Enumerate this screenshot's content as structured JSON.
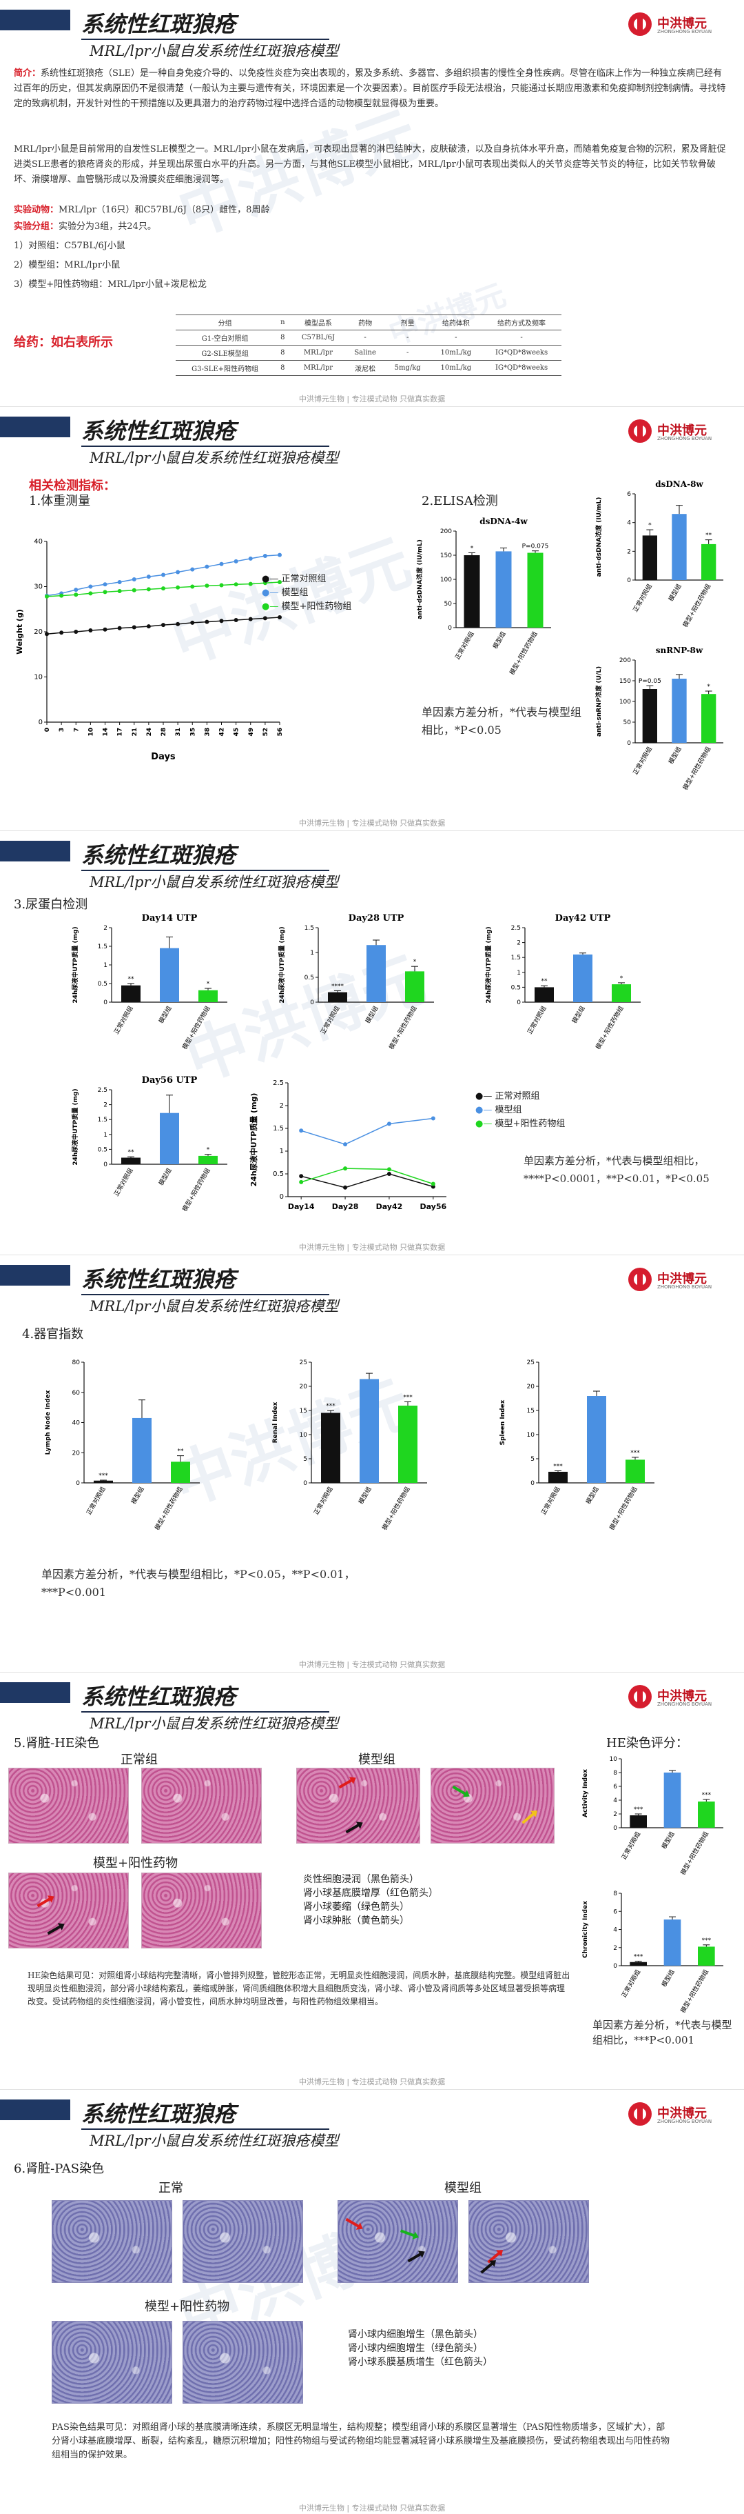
{
  "header": {
    "title": "系统性红斑狼疮",
    "subtitle": "MRL/lpr小鼠自发系统性红斑狼疮模型",
    "logo_name": "中洪博元",
    "logo_en": "ZHONGHONG BOYUAN"
  },
  "footer": "中洪博元生物 | 专注模式动物 只做真实数据",
  "watermark": "中洪博元",
  "panel1": {
    "intro_label": "简介：",
    "intro": "系统性红斑狼疮（SLE）是一种自身免疫介导的、以免疫性炎症为突出表现的，累及多系统、多器官、多组织损害的慢性全身性疾病。尽管在临床上作为一种独立疾病已经有过百年的历史，但其发病原因仍不是很清楚（一般认为主要与遗传有关，环境因素是一个次要因素）。目前医疗手段无法根治，只能通过长期应用激素和免疫抑制剂控制病情。寻找特定的致病机制，开发针对性的干预措施以及更具潜力的治疗药物过程中选择合适的动物模型就显得极为重要。",
    "model_desc": "MRL/lpr小鼠是目前常用的自发性SLE模型之一。MRL/lpr小鼠在发病后，可表现出显著的淋巴结肿大，皮肤破溃，以及自身抗体水平升高，而随着免疫复合物的沉积，累及肾脏促进类SLE患者的狼疮肾炎的形成，并呈现出尿蛋白水平的升高。另一方面，与其他SLE模型小鼠相比，MRL/lpr小鼠可表现出类似人的关节炎症等关节炎的特征，比如关节软骨破坏、滑膜增厚、血管翳形成以及滑膜炎症细胞浸润等。",
    "animal_label": "实验动物：",
    "animal": "MRL/lpr（16只）和C57BL/6J（8只）雌性，8周龄",
    "group_label": "实验分组：",
    "group": "实验分为3组，共24只。",
    "groups": [
      "1）对照组：C57BL/6J小鼠",
      "2）模型组：MRL/lpr小鼠",
      "3）模型+阳性药物组：MRL/lpr小鼠+泼尼松龙"
    ],
    "dose_label": "给药：如右表所示",
    "table_headers": [
      "分组",
      "n",
      "模型品系",
      "药物",
      "剂量",
      "给药体积",
      "给药方式及频率"
    ],
    "table_rows": [
      [
        "G1-空白对照组",
        "8",
        "C57BL/6J",
        "-",
        "-",
        "-",
        "-"
      ],
      [
        "G2-SLE模型组",
        "8",
        "MRL/lpr",
        "Saline",
        "-",
        "10mL/kg",
        "IG*QD*8weeks"
      ],
      [
        "G3-SLE+阳性药物组",
        "8",
        "MRL/lpr",
        "泼尼松",
        "5mg/kg",
        "10mL/kg",
        "IG*QD*8weeks"
      ]
    ]
  },
  "panel2": {
    "section": "相关检测指标：",
    "sub1": "1.体重测量",
    "sub2": "2.ELISA检测",
    "legend": [
      "正常对照组",
      "模型组",
      "模型+阳性药物组"
    ],
    "colors": {
      "normal": "#111111",
      "model": "#4a90e2",
      "drug": "#1fd61f"
    },
    "note": "单因素方差分析，*代表与模型组相比，*P<0.05"
  },
  "panel3": {
    "sub": "3.尿蛋白检测",
    "note": "单因素方差分析，*代表与模型组相比，****P<0.0001，**P<0.01，*P<0.05"
  },
  "panel4": {
    "sub": "4.器官指数",
    "note": "单因素方差分析，*代表与模型组相比，*P<0.05，**P<0.01，***P<0.001"
  },
  "panel5": {
    "sub": "5.肾脏-HE染色",
    "label_normal": "正常组",
    "label_model": "模型组",
    "label_drug": "模型+阳性药物",
    "legend": [
      "炎性细胞浸润（黑色箭头）",
      "肾小球基底膜增厚（红色箭头）",
      "肾小球萎缩（绿色箭头）",
      "肾小球肿胀（黄色箭头）"
    ],
    "score_title": "HE染色评分：",
    "note": "单因素方差分析，*代表与模型组相比，***P<0.001",
    "desc": "HE染色结果可见：对照组肾小球结构完整清晰，肾小管排列规整，管腔形态正常，无明显炎性细胞浸润，间质水肿，基底膜结构完整。模型组肾脏出现明显炎性细胞浸润，部分肾小球结构紊乱，萎缩或肿胀，肾间质细胞体积增大且细胞质变浅，肾小球、肾小管及肾间质等多处区域显著受损等病理改变。受试药物组的炎性细胞浸润，肾小管变性，间质水肿均明显改善，与阳性药物组效果相当。"
  },
  "panel6": {
    "sub": "6.肾脏-PAS染色",
    "label_normal": "正常",
    "label_model": "模型组",
    "label_drug": "模型+阳性药物",
    "legend": [
      "肾小球内细胞增生（黑色箭头）",
      "肾小球内细胞增生（绿色箭头）",
      "肾小球系膜基质增生（红色箭头）"
    ],
    "desc": "PAS染色结果可见：对照组肾小球的基底膜清晰连续，系膜区无明显增生，结构规整；模型组肾小球的系膜区显著增生（PAS阳性物质增多，区域扩大），部分肾小球基底膜增厚、断裂，结构紊乱，糖原沉积增加；阳性药物组与受试药物组均能显著减轻肾小球系膜增生及基底膜损伤，受试药物组表现出与阳性药物组相当的保护效果。"
  },
  "chart_data": [
    {
      "type": "line",
      "title": "",
      "xlabel": "Days",
      "ylabel": "Weight (g)",
      "x": [
        0,
        3,
        7,
        10,
        14,
        17,
        21,
        24,
        28,
        31,
        35,
        38,
        42,
        45,
        49,
        52,
        56
      ],
      "ylim": [
        0,
        40
      ],
      "yticks": [
        0,
        10,
        20,
        30,
        40
      ],
      "series": [
        {
          "name": "正常对照组",
          "values": [
            19.5,
            19.8,
            20.0,
            20.3,
            20.5,
            20.8,
            21.0,
            21.2,
            21.5,
            21.7,
            22.0,
            22.2,
            22.4,
            22.6,
            22.8,
            23.0,
            23.2
          ]
        },
        {
          "name": "模型组",
          "values": [
            28.0,
            28.5,
            29.3,
            30.0,
            30.5,
            31.0,
            31.6,
            32.2,
            32.6,
            33.2,
            33.8,
            34.4,
            35.0,
            35.6,
            36.2,
            36.8,
            37.0
          ]
        },
        {
          "name": "模型+阳性药物组",
          "values": [
            27.8,
            28.0,
            28.2,
            28.5,
            28.8,
            29.0,
            29.2,
            29.4,
            29.6,
            29.8,
            30.0,
            30.2,
            30.3,
            30.5,
            30.6,
            30.8,
            31.0
          ]
        }
      ]
    },
    {
      "type": "bar",
      "title": "dsDNA-4w",
      "ylabel": "anti-dsDNA浓度 (IU/mL)",
      "ylim": [
        0,
        200
      ],
      "yticks": [
        0,
        50,
        100,
        150,
        200
      ],
      "categories": [
        "正常对照组",
        "模型组",
        "模型+阳性药物组"
      ],
      "values": [
        150,
        158,
        155
      ],
      "err": [
        5,
        7,
        4
      ],
      "sig": [
        "*",
        "",
        "P=0.075"
      ]
    },
    {
      "type": "bar",
      "title": "dsDNA-8w",
      "ylabel": "anti-dsDNA浓度 (IU/mL)",
      "ylim": [
        0,
        6
      ],
      "yticks": [
        0,
        2,
        4,
        6
      ],
      "categories": [
        "正常对照组",
        "模型组",
        "模型+阳性药物组"
      ],
      "values": [
        3.1,
        4.6,
        2.5
      ],
      "err": [
        0.4,
        0.6,
        0.3
      ],
      "sig": [
        "*",
        "",
        "**"
      ]
    },
    {
      "type": "bar",
      "title": "snRNP-8w",
      "ylabel": "anti-snRNP浓度 (U/L)",
      "ylim": [
        0,
        200
      ],
      "yticks": [
        0,
        50,
        100,
        150,
        200
      ],
      "categories": [
        "正常对照组",
        "模型组",
        "模型+阳性药物组"
      ],
      "values": [
        130,
        155,
        118
      ],
      "err": [
        8,
        10,
        7
      ],
      "sig": [
        "P=0.05",
        "",
        "*"
      ]
    },
    {
      "type": "bar",
      "title": "Day14 UTP",
      "ylabel": "24h尿液中UTP质量 (mg)",
      "ylim": [
        0,
        2.0
      ],
      "yticks": [
        0,
        0.5,
        1.0,
        1.5,
        2.0
      ],
      "categories": [
        "正常对照组",
        "模型组",
        "模型+阳性药物组"
      ],
      "values": [
        0.45,
        1.45,
        0.32
      ],
      "err": [
        0.05,
        0.3,
        0.05
      ],
      "sig": [
        "**",
        "",
        "*"
      ]
    },
    {
      "type": "bar",
      "title": "Day28 UTP",
      "ylabel": "24h尿液中UTP质量 (mg)",
      "ylim": [
        0,
        1.5
      ],
      "yticks": [
        0,
        0.5,
        1.0,
        1.5
      ],
      "categories": [
        "正常对照组",
        "模型组",
        "模型+阳性药物组"
      ],
      "values": [
        0.2,
        1.15,
        0.62
      ],
      "err": [
        0.03,
        0.1,
        0.1
      ],
      "sig": [
        "****",
        "",
        "*"
      ]
    },
    {
      "type": "bar",
      "title": "Day42 UTP",
      "ylabel": "24h尿液中UTP质量 (mg)",
      "ylim": [
        0,
        2.5
      ],
      "yticks": [
        0,
        0.5,
        1.0,
        1.5,
        2.0,
        2.5
      ],
      "categories": [
        "正常对照组",
        "模型组",
        "模型+阳性药物组"
      ],
      "values": [
        0.5,
        1.6,
        0.6
      ],
      "err": [
        0.05,
        0.05,
        0.05
      ],
      "sig": [
        "**",
        "",
        "*"
      ]
    },
    {
      "type": "bar",
      "title": "Day56 UTP",
      "ylabel": "24h尿液中UTP质量 (mg)",
      "ylim": [
        0,
        2.5
      ],
      "yticks": [
        0,
        0.5,
        1.0,
        1.5,
        2.0,
        2.5
      ],
      "categories": [
        "正常对照组",
        "模型组",
        "模型+阳性药物组"
      ],
      "values": [
        0.22,
        1.72,
        0.28
      ],
      "err": [
        0.03,
        0.6,
        0.05
      ],
      "sig": [
        "**",
        "",
        "*"
      ]
    },
    {
      "type": "line",
      "title": "",
      "ylabel": "24h尿液中UTP质量 (mg)",
      "x": [
        "Day14",
        "Day28",
        "Day42",
        "Day56"
      ],
      "ylim": [
        0,
        2.5
      ],
      "yticks": [
        0,
        0.5,
        1.0,
        1.5,
        2.0,
        2.5
      ],
      "series": [
        {
          "name": "正常对照组",
          "values": [
            0.45,
            0.2,
            0.5,
            0.22
          ]
        },
        {
          "name": "模型组",
          "values": [
            1.45,
            1.15,
            1.6,
            1.72
          ]
        },
        {
          "name": "模型+阳性药物组",
          "values": [
            0.32,
            0.62,
            0.6,
            0.28
          ]
        }
      ]
    },
    {
      "type": "bar",
      "title": "",
      "ylabel": "Lymph Node Index",
      "ylim": [
        0,
        80
      ],
      "yticks": [
        0,
        20,
        40,
        60,
        80
      ],
      "categories": [
        "正常对照组",
        "模型组",
        "模型+阳性药物组"
      ],
      "values": [
        1.5,
        43,
        14
      ],
      "err": [
        0.3,
        12,
        4
      ],
      "sig": [
        "***",
        "",
        "**"
      ]
    },
    {
      "type": "bar",
      "title": "",
      "ylabel": "Renal Index",
      "ylim": [
        0,
        25
      ],
      "yticks": [
        0,
        5,
        10,
        15,
        20,
        25
      ],
      "categories": [
        "正常对照组",
        "模型组",
        "模型+阳性药物组"
      ],
      "values": [
        14.5,
        21.5,
        16
      ],
      "err": [
        0.5,
        1.2,
        0.8
      ],
      "sig": [
        "***",
        "",
        "***"
      ]
    },
    {
      "type": "bar",
      "title": "",
      "ylabel": "Spleen Index",
      "ylim": [
        0,
        25
      ],
      "yticks": [
        0,
        5,
        10,
        15,
        20,
        25
      ],
      "categories": [
        "正常对照组",
        "模型组",
        "模型+阳性药物组"
      ],
      "values": [
        2.3,
        18,
        4.8
      ],
      "err": [
        0.2,
        1.0,
        0.5
      ],
      "sig": [
        "***",
        "",
        "***"
      ]
    },
    {
      "type": "bar",
      "title": "",
      "ylabel": "Activity Index",
      "ylim": [
        0,
        10
      ],
      "yticks": [
        0,
        2,
        4,
        6,
        8,
        10
      ],
      "categories": [
        "正常对照组",
        "模型组",
        "模型+阳性药物组"
      ],
      "values": [
        1.8,
        8.0,
        3.8
      ],
      "err": [
        0.2,
        0.3,
        0.3
      ],
      "sig": [
        "***",
        "",
        "***"
      ]
    },
    {
      "type": "bar",
      "title": "",
      "ylabel": "Chronicity Index",
      "ylim": [
        0,
        8
      ],
      "yticks": [
        0,
        2,
        4,
        6,
        8
      ],
      "categories": [
        "正常对照组",
        "模型组",
        "模型+阳性药物组"
      ],
      "values": [
        0.4,
        5.1,
        2.1
      ],
      "err": [
        0.1,
        0.3,
        0.2
      ],
      "sig": [
        "***",
        "",
        "***"
      ]
    }
  ]
}
